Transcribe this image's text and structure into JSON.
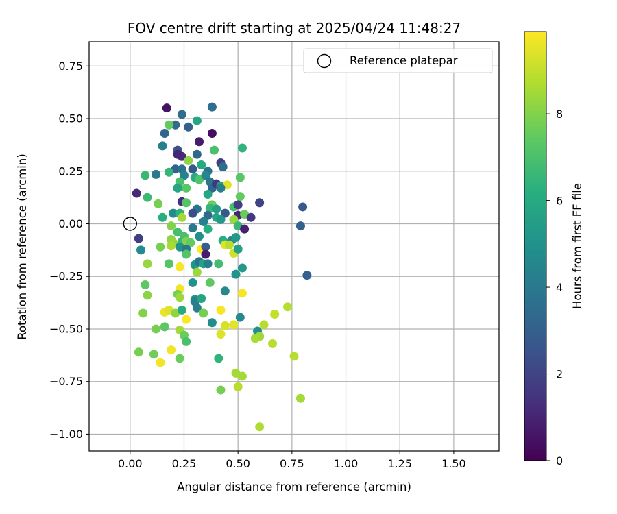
{
  "chart_data": {
    "type": "scatter",
    "title": "FOV centre drift starting at 2025/04/24 11:48:27",
    "xlabel": "Angular distance from reference (arcmin)",
    "ylabel": "Rotation from reference (arcmin)",
    "xlim": [
      -0.19,
      1.71
    ],
    "ylim": [
      -1.08,
      0.865
    ],
    "xticks": [
      0.0,
      0.25,
      0.5,
      0.75,
      1.0,
      1.25,
      1.5
    ],
    "xtick_labels": [
      "0.00",
      "0.25",
      "0.50",
      "0.75",
      "1.00",
      "1.25",
      "1.50"
    ],
    "yticks": [
      0.75,
      0.5,
      0.25,
      0.0,
      -0.25,
      -0.5,
      -0.75,
      -1.0
    ],
    "ytick_labels": [
      "0.75",
      "0.50",
      "0.25",
      "0.00",
      "−0.25",
      "−0.50",
      "−0.75",
      "−1.00"
    ],
    "grid": true,
    "legend_placement": "top-right",
    "colormap": "viridis",
    "colorbar": {
      "label": "Hours from first FF file",
      "range": [
        0,
        9.9
      ],
      "ticks": [
        0,
        2,
        4,
        6,
        8
      ],
      "tick_labels": [
        "0",
        "2",
        "4",
        "6",
        "8"
      ]
    },
    "reference": {
      "name": "Reference platepar",
      "x": 0.0,
      "y": 0.0
    },
    "points": [
      {
        "x": 0.17,
        "y": 0.55,
        "c": 0.5
      },
      {
        "x": 0.24,
        "y": 0.52,
        "c": 3.5
      },
      {
        "x": 0.38,
        "y": 0.555,
        "c": 3.6
      },
      {
        "x": 0.21,
        "y": 0.47,
        "c": 3.4
      },
      {
        "x": 0.27,
        "y": 0.46,
        "c": 3.0
      },
      {
        "x": 0.31,
        "y": 0.49,
        "c": 5.8
      },
      {
        "x": 0.38,
        "y": 0.43,
        "c": 0.4
      },
      {
        "x": 0.18,
        "y": 0.47,
        "c": 7.5
      },
      {
        "x": 0.16,
        "y": 0.43,
        "c": 3.2
      },
      {
        "x": 0.15,
        "y": 0.37,
        "c": 4.3
      },
      {
        "x": 0.32,
        "y": 0.39,
        "c": 0.8
      },
      {
        "x": 0.22,
        "y": 0.35,
        "c": 2.5
      },
      {
        "x": 0.39,
        "y": 0.35,
        "c": 7.0
      },
      {
        "x": 0.52,
        "y": 0.36,
        "c": 6.4
      },
      {
        "x": 0.24,
        "y": 0.32,
        "c": 1.2
      },
      {
        "x": 0.22,
        "y": 0.33,
        "c": 1.0
      },
      {
        "x": 0.27,
        "y": 0.3,
        "c": 8.2
      },
      {
        "x": 0.31,
        "y": 0.33,
        "c": 3.3
      },
      {
        "x": 0.42,
        "y": 0.29,
        "c": 1.8
      },
      {
        "x": 0.43,
        "y": 0.27,
        "c": 3.5
      },
      {
        "x": 0.33,
        "y": 0.28,
        "c": 6.0
      },
      {
        "x": 0.12,
        "y": 0.235,
        "c": 4.0
      },
      {
        "x": 0.07,
        "y": 0.23,
        "c": 6.6
      },
      {
        "x": 0.21,
        "y": 0.26,
        "c": 3.1
      },
      {
        "x": 0.24,
        "y": 0.26,
        "c": 3.7
      },
      {
        "x": 0.29,
        "y": 0.26,
        "c": 2.7
      },
      {
        "x": 0.36,
        "y": 0.25,
        "c": 3.8
      },
      {
        "x": 0.18,
        "y": 0.245,
        "c": 6.5
      },
      {
        "x": 0.25,
        "y": 0.23,
        "c": 4.4
      },
      {
        "x": 0.3,
        "y": 0.22,
        "c": 6.1
      },
      {
        "x": 0.32,
        "y": 0.21,
        "c": 7.1
      },
      {
        "x": 0.35,
        "y": 0.23,
        "c": 4.6
      },
      {
        "x": 0.51,
        "y": 0.22,
        "c": 7.3
      },
      {
        "x": 0.23,
        "y": 0.2,
        "c": 7.0
      },
      {
        "x": 0.37,
        "y": 0.2,
        "c": 3.9
      },
      {
        "x": 0.38,
        "y": 0.17,
        "c": 3.3
      },
      {
        "x": 0.4,
        "y": 0.19,
        "c": 1.6
      },
      {
        "x": 0.42,
        "y": 0.18,
        "c": 5.5
      },
      {
        "x": 0.45,
        "y": 0.185,
        "c": 9.5
      },
      {
        "x": 0.22,
        "y": 0.17,
        "c": 5.8
      },
      {
        "x": 0.26,
        "y": 0.17,
        "c": 7.3
      },
      {
        "x": 0.36,
        "y": 0.14,
        "c": 5.9
      },
      {
        "x": 0.42,
        "y": 0.17,
        "c": 4.2
      },
      {
        "x": 0.03,
        "y": 0.145,
        "c": 1.1
      },
      {
        "x": 0.08,
        "y": 0.125,
        "c": 6.7
      },
      {
        "x": 0.51,
        "y": 0.13,
        "c": 7.5
      },
      {
        "x": 0.24,
        "y": 0.105,
        "c": 1.2
      },
      {
        "x": 0.26,
        "y": 0.1,
        "c": 7.2
      },
      {
        "x": 0.38,
        "y": 0.09,
        "c": 7.6
      },
      {
        "x": 0.48,
        "y": 0.08,
        "c": 6.9
      },
      {
        "x": 0.5,
        "y": 0.09,
        "c": 1.8
      },
      {
        "x": 0.6,
        "y": 0.1,
        "c": 2.0
      },
      {
        "x": 0.13,
        "y": 0.095,
        "c": 7.8
      },
      {
        "x": 0.31,
        "y": 0.07,
        "c": 3.8
      },
      {
        "x": 0.37,
        "y": 0.075,
        "c": 6.5
      },
      {
        "x": 0.4,
        "y": 0.07,
        "c": 5.5
      },
      {
        "x": 0.8,
        "y": 0.08,
        "c": 2.7
      },
      {
        "x": 0.2,
        "y": 0.05,
        "c": 4.7
      },
      {
        "x": 0.23,
        "y": 0.05,
        "c": 6.3
      },
      {
        "x": 0.29,
        "y": 0.05,
        "c": 2.3
      },
      {
        "x": 0.36,
        "y": 0.04,
        "c": 3.4
      },
      {
        "x": 0.4,
        "y": 0.03,
        "c": 5.9
      },
      {
        "x": 0.44,
        "y": 0.05,
        "c": 2.8
      },
      {
        "x": 0.5,
        "y": 0.04,
        "c": 1.0
      },
      {
        "x": 0.53,
        "y": 0.045,
        "c": 7.6
      },
      {
        "x": 0.56,
        "y": 0.03,
        "c": 1.6
      },
      {
        "x": 0.15,
        "y": 0.03,
        "c": 6.2
      },
      {
        "x": 0.24,
        "y": 0.03,
        "c": 8.5
      },
      {
        "x": 0.34,
        "y": 0.01,
        "c": 4.3
      },
      {
        "x": 0.42,
        "y": 0.02,
        "c": 5.3
      },
      {
        "x": 0.48,
        "y": 0.02,
        "c": 8.3
      },
      {
        "x": 0.5,
        "y": -0.01,
        "c": 6.6
      },
      {
        "x": 0.53,
        "y": -0.025,
        "c": 0.9
      },
      {
        "x": 0.79,
        "y": -0.01,
        "c": 3.0
      },
      {
        "x": 0.19,
        "y": -0.01,
        "c": 8.0
      },
      {
        "x": 0.29,
        "y": -0.02,
        "c": 4.0
      },
      {
        "x": 0.36,
        "y": -0.025,
        "c": 6.2
      },
      {
        "x": 0.04,
        "y": -0.07,
        "c": 1.8
      },
      {
        "x": 0.22,
        "y": -0.04,
        "c": 6.9
      },
      {
        "x": 0.25,
        "y": -0.06,
        "c": 7.0
      },
      {
        "x": 0.32,
        "y": -0.06,
        "c": 4.9
      },
      {
        "x": 0.19,
        "y": -0.075,
        "c": 8.2
      },
      {
        "x": 0.2,
        "y": -0.09,
        "c": 8.3
      },
      {
        "x": 0.43,
        "y": -0.08,
        "c": 6.1
      },
      {
        "x": 0.47,
        "y": -0.08,
        "c": 4.5
      },
      {
        "x": 0.49,
        "y": -0.065,
        "c": 5.3
      },
      {
        "x": 0.24,
        "y": -0.085,
        "c": 6.6
      },
      {
        "x": 0.26,
        "y": -0.085,
        "c": 8.0
      },
      {
        "x": 0.28,
        "y": -0.09,
        "c": 7.5
      },
      {
        "x": 0.05,
        "y": -0.125,
        "c": 4.8
      },
      {
        "x": 0.14,
        "y": -0.11,
        "c": 7.8
      },
      {
        "x": 0.19,
        "y": -0.105,
        "c": 8.6
      },
      {
        "x": 0.23,
        "y": -0.11,
        "c": 5.0
      },
      {
        "x": 0.26,
        "y": -0.12,
        "c": 4.0
      },
      {
        "x": 0.33,
        "y": -0.12,
        "c": 9.9
      },
      {
        "x": 0.35,
        "y": -0.11,
        "c": 3.0
      },
      {
        "x": 0.44,
        "y": -0.1,
        "c": 9.4
      },
      {
        "x": 0.46,
        "y": -0.1,
        "c": 8.8
      },
      {
        "x": 0.48,
        "y": -0.14,
        "c": 9.2
      },
      {
        "x": 0.5,
        "y": -0.12,
        "c": 5.6
      },
      {
        "x": 0.35,
        "y": -0.145,
        "c": 0.8
      },
      {
        "x": 0.26,
        "y": -0.145,
        "c": 7.2
      },
      {
        "x": 0.08,
        "y": -0.19,
        "c": 8.3
      },
      {
        "x": 0.18,
        "y": -0.19,
        "c": 7.2
      },
      {
        "x": 0.23,
        "y": -0.205,
        "c": 9.8
      },
      {
        "x": 0.3,
        "y": -0.195,
        "c": 5.1
      },
      {
        "x": 0.32,
        "y": -0.18,
        "c": 3.8
      },
      {
        "x": 0.34,
        "y": -0.19,
        "c": 5.6
      },
      {
        "x": 0.36,
        "y": -0.19,
        "c": 4.2
      },
      {
        "x": 0.41,
        "y": -0.19,
        "c": 6.8
      },
      {
        "x": 0.52,
        "y": -0.21,
        "c": 5.3
      },
      {
        "x": 0.31,
        "y": -0.23,
        "c": 8.4
      },
      {
        "x": 0.49,
        "y": -0.24,
        "c": 5.1
      },
      {
        "x": 0.82,
        "y": -0.245,
        "c": 3.0
      },
      {
        "x": 0.07,
        "y": -0.29,
        "c": 7.4
      },
      {
        "x": 0.29,
        "y": -0.28,
        "c": 5.0
      },
      {
        "x": 0.37,
        "y": -0.28,
        "c": 7.4
      },
      {
        "x": 0.23,
        "y": -0.31,
        "c": 9.7
      },
      {
        "x": 0.44,
        "y": -0.32,
        "c": 4.6
      },
      {
        "x": 0.08,
        "y": -0.34,
        "c": 8.1
      },
      {
        "x": 0.22,
        "y": -0.335,
        "c": 7.8
      },
      {
        "x": 0.23,
        "y": -0.35,
        "c": 8.4
      },
      {
        "x": 0.3,
        "y": -0.36,
        "c": 5.0
      },
      {
        "x": 0.3,
        "y": -0.37,
        "c": 4.3
      },
      {
        "x": 0.33,
        "y": -0.355,
        "c": 5.7
      },
      {
        "x": 0.52,
        "y": -0.33,
        "c": 9.8
      },
      {
        "x": 0.31,
        "y": -0.4,
        "c": 4.2
      },
      {
        "x": 0.06,
        "y": -0.425,
        "c": 8.0
      },
      {
        "x": 0.16,
        "y": -0.42,
        "c": 9.6
      },
      {
        "x": 0.18,
        "y": -0.41,
        "c": 9.4
      },
      {
        "x": 0.21,
        "y": -0.425,
        "c": 8.2
      },
      {
        "x": 0.24,
        "y": -0.41,
        "c": 6.0
      },
      {
        "x": 0.34,
        "y": -0.425,
        "c": 7.8
      },
      {
        "x": 0.42,
        "y": -0.41,
        "c": 9.8
      },
      {
        "x": 0.51,
        "y": -0.445,
        "c": 4.7
      },
      {
        "x": 0.26,
        "y": -0.455,
        "c": 9.9
      },
      {
        "x": 0.67,
        "y": -0.43,
        "c": 9.0
      },
      {
        "x": 0.73,
        "y": -0.395,
        "c": 8.8
      },
      {
        "x": 0.38,
        "y": -0.47,
        "c": 4.8
      },
      {
        "x": 0.12,
        "y": -0.5,
        "c": 7.8
      },
      {
        "x": 0.16,
        "y": -0.49,
        "c": 7.4
      },
      {
        "x": 0.23,
        "y": -0.505,
        "c": 8.5
      },
      {
        "x": 0.25,
        "y": -0.53,
        "c": 7.6
      },
      {
        "x": 0.26,
        "y": -0.56,
        "c": 7.0
      },
      {
        "x": 0.42,
        "y": -0.525,
        "c": 9.4
      },
      {
        "x": 0.44,
        "y": -0.485,
        "c": 9.3
      },
      {
        "x": 0.48,
        "y": -0.48,
        "c": 9.5
      },
      {
        "x": 0.59,
        "y": -0.51,
        "c": 4.9
      },
      {
        "x": 0.6,
        "y": -0.535,
        "c": 8.4
      },
      {
        "x": 0.62,
        "y": -0.48,
        "c": 8.8
      },
      {
        "x": 0.58,
        "y": -0.545,
        "c": 8.6
      },
      {
        "x": 0.66,
        "y": -0.57,
        "c": 8.8
      },
      {
        "x": 0.04,
        "y": -0.61,
        "c": 7.8
      },
      {
        "x": 0.11,
        "y": -0.62,
        "c": 7.7
      },
      {
        "x": 0.14,
        "y": -0.66,
        "c": 9.7
      },
      {
        "x": 0.19,
        "y": -0.6,
        "c": 9.7
      },
      {
        "x": 0.23,
        "y": -0.64,
        "c": 7.6
      },
      {
        "x": 0.41,
        "y": -0.64,
        "c": 6.4
      },
      {
        "x": 0.49,
        "y": -0.71,
        "c": 8.5
      },
      {
        "x": 0.52,
        "y": -0.725,
        "c": 8.5
      },
      {
        "x": 0.5,
        "y": -0.775,
        "c": 8.8
      },
      {
        "x": 0.42,
        "y": -0.79,
        "c": 7.8
      },
      {
        "x": 0.76,
        "y": -0.63,
        "c": 8.8
      },
      {
        "x": 0.79,
        "y": -0.83,
        "c": 8.5
      },
      {
        "x": 0.6,
        "y": -0.965,
        "c": 8.7
      }
    ]
  }
}
